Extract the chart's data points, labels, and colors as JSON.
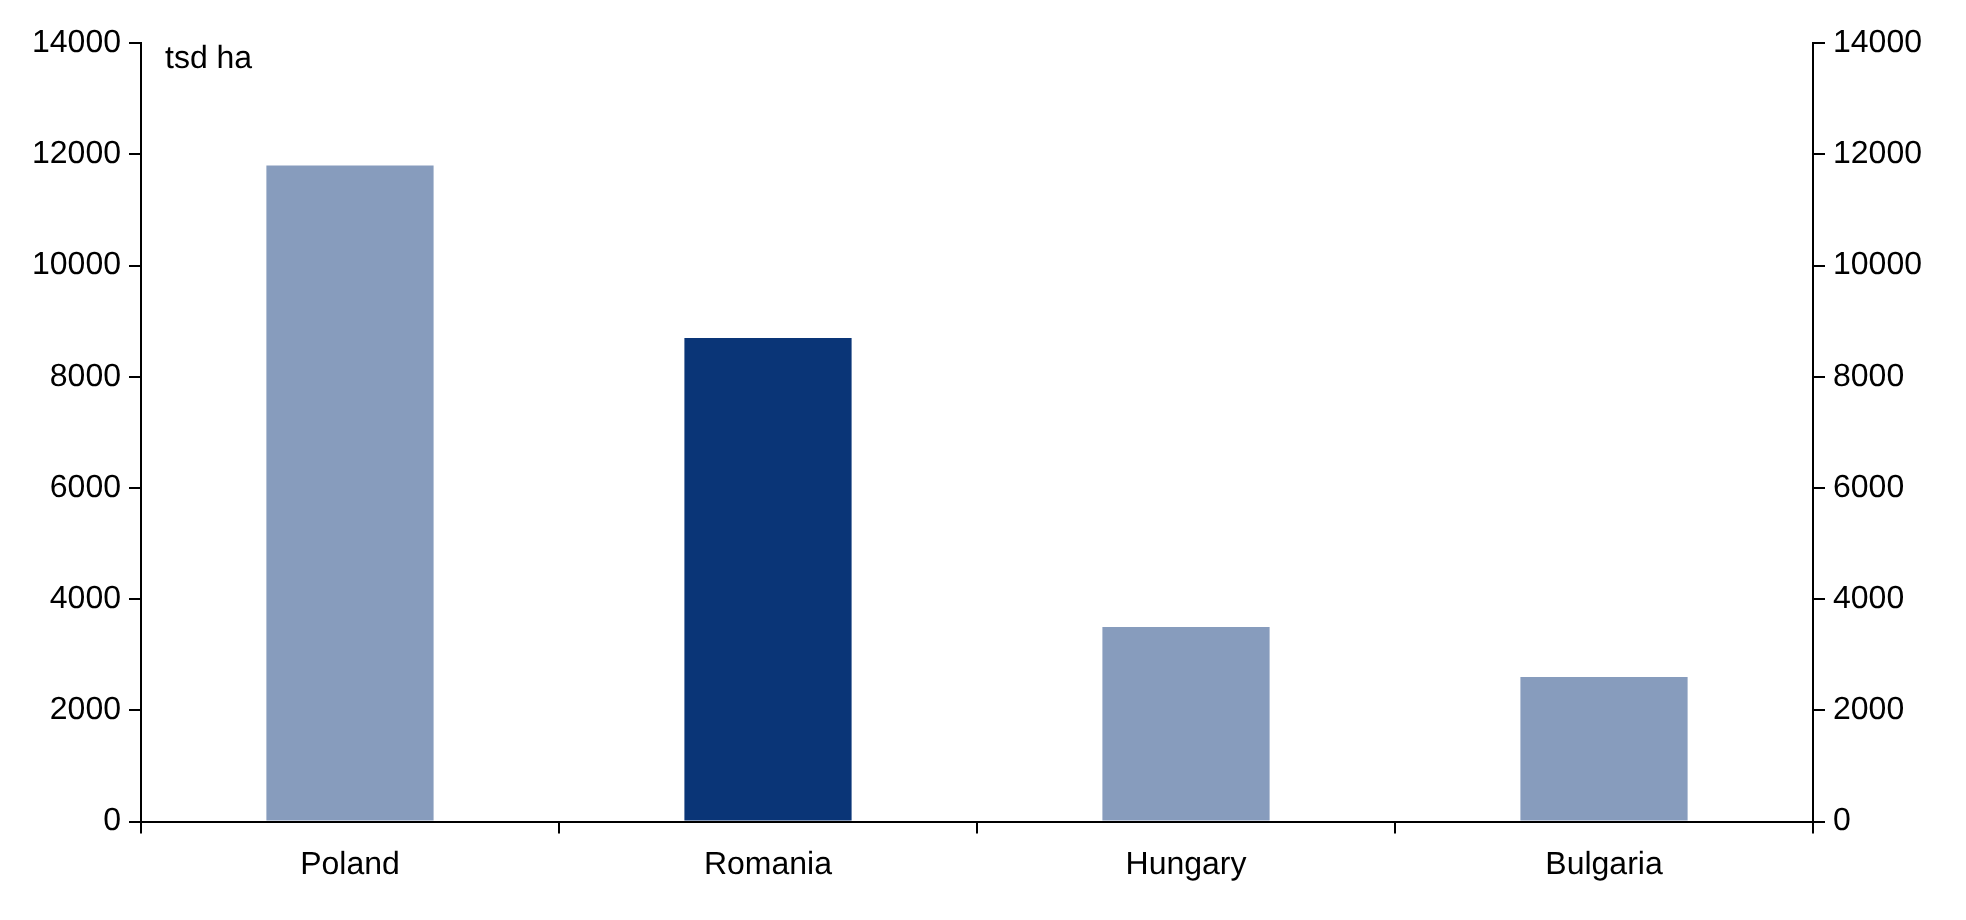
{
  "chart_data": {
    "type": "bar",
    "ylabel": "tsd ha",
    "categories": [
      "Poland",
      "Romania",
      "Hungary",
      "Bulgaria"
    ],
    "values": [
      11800,
      8700,
      3500,
      2600
    ],
    "colors": [
      "#879cbd",
      "#0a3577",
      "#879cbd",
      "#879cbd"
    ],
    "ylim": [
      0,
      14000
    ],
    "yticks": [
      0,
      2000,
      4000,
      6000,
      8000,
      10000,
      12000,
      14000
    ],
    "y2lim": [
      0,
      14000
    ],
    "y2ticks": [
      0,
      2000,
      4000,
      6000,
      8000,
      10000,
      12000,
      14000
    ],
    "grid": false,
    "legend": false
  }
}
